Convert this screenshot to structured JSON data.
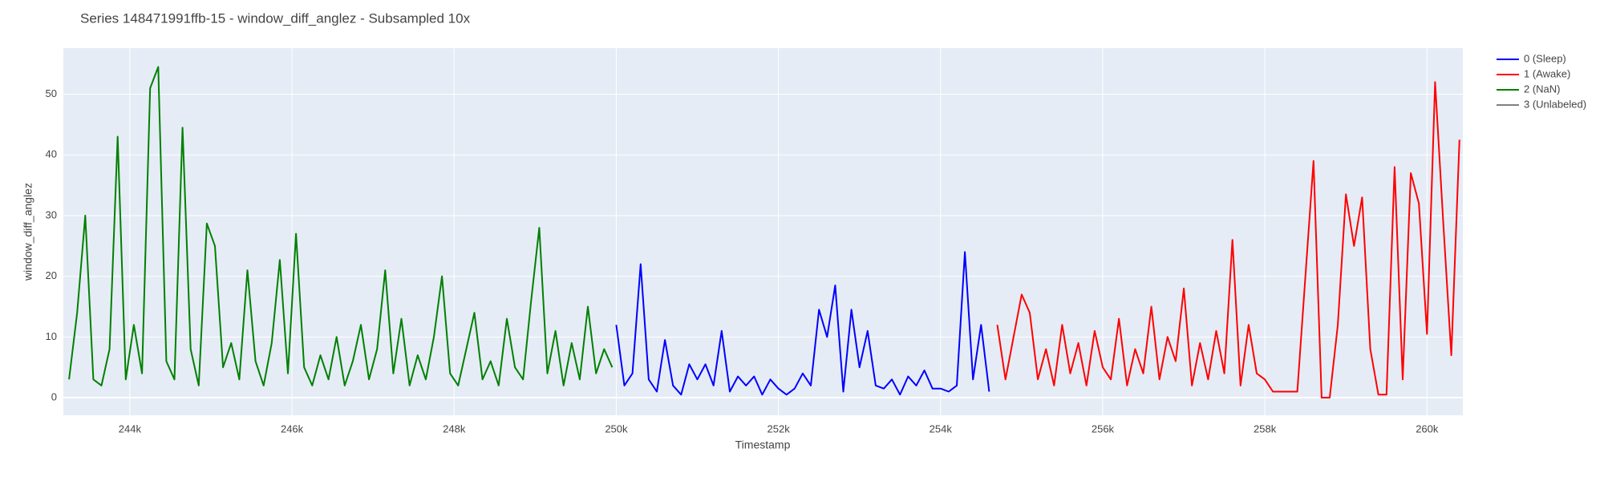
{
  "chart_data": {
    "type": "line",
    "title": "Series 148471991ffb-15 - window_diff_anglez - Subsampled 10x",
    "x_label": "Timestamp",
    "y_label": "window_diff_anglez",
    "xlim": [
      243180,
      260442
    ],
    "ylim": [
      -2.9,
      57.6
    ],
    "xticks": [
      {
        "value": 244000,
        "label": "244k"
      },
      {
        "value": 246000,
        "label": "246k"
      },
      {
        "value": 248000,
        "label": "248k"
      },
      {
        "value": 250000,
        "label": "250k"
      },
      {
        "value": 252000,
        "label": "252k"
      },
      {
        "value": 254000,
        "label": "254k"
      },
      {
        "value": 256000,
        "label": "256k"
      },
      {
        "value": 258000,
        "label": "258k"
      },
      {
        "value": 260000,
        "label": "260k"
      }
    ],
    "yticks": [
      0,
      10,
      20,
      30,
      40,
      50
    ],
    "grid": true,
    "legend": "top-right",
    "series": [
      {
        "name": "0 (Sleep)",
        "color": "#0000ff",
        "x": [
          250000,
          250100,
          250200,
          250300,
          250400,
          250500,
          250600,
          250700,
          250800,
          250900,
          251000,
          251100,
          251200,
          251300,
          251400,
          251500,
          251600,
          251700,
          251800,
          251900,
          252000,
          252100,
          252200,
          252300,
          252400,
          252500,
          252600,
          252700,
          252800,
          252900,
          253000,
          253100,
          253200,
          253300,
          253400,
          253500,
          253600,
          253700,
          253800,
          253900,
          254000,
          254100,
          254200,
          254300,
          254400,
          254500,
          254600
        ],
        "values": [
          12,
          2,
          4,
          22,
          3,
          1,
          9.5,
          2,
          0.5,
          5.5,
          3,
          5.5,
          2,
          11,
          1,
          3.5,
          2,
          3.5,
          0.5,
          3,
          1.5,
          0.5,
          1.5,
          4,
          2,
          14.5,
          10,
          18.5,
          1,
          14.5,
          5,
          11,
          2,
          1.5,
          3,
          0.5,
          3.5,
          2,
          4.5,
          1.5,
          1.5,
          1,
          2,
          24,
          3,
          12,
          1
        ]
      },
      {
        "name": "1 (Awake)",
        "color": "#ff0000",
        "x": [
          254700,
          254800,
          254900,
          255000,
          255100,
          255200,
          255300,
          255400,
          255500,
          255600,
          255700,
          255800,
          255900,
          256000,
          256100,
          256200,
          256300,
          256400,
          256500,
          256600,
          256700,
          256800,
          256900,
          257000,
          257100,
          257200,
          257300,
          257400,
          257500,
          257600,
          257700,
          257800,
          257900,
          258000,
          258100,
          258200,
          258300,
          258400,
          258500,
          258600,
          258700,
          258800,
          258900,
          259000,
          259100,
          259200,
          259300,
          259400,
          259500,
          259600,
          259700,
          259800,
          259900,
          260000,
          260100,
          260200,
          260300,
          260400
        ],
        "values": [
          12,
          3,
          10,
          17,
          14,
          3,
          8,
          2,
          12,
          4,
          9,
          2,
          11,
          5,
          3,
          13,
          2,
          8,
          4,
          15,
          3,
          10,
          6,
          18,
          2,
          9,
          3,
          11,
          4,
          26,
          2,
          12,
          4,
          3,
          1,
          1,
          1,
          1,
          20,
          39,
          0,
          0,
          12,
          33.5,
          25,
          33,
          8,
          0.5,
          0.5,
          38,
          3,
          37,
          32,
          10.5,
          52,
          29,
          7,
          42.5
        ]
      },
      {
        "name": "2 (NaN)",
        "color": "#008000",
        "x": [
          243250,
          243350,
          243450,
          243550,
          243650,
          243750,
          243850,
          243950,
          244050,
          244150,
          244250,
          244350,
          244450,
          244550,
          244650,
          244750,
          244850,
          244950,
          245050,
          245150,
          245250,
          245350,
          245450,
          245550,
          245650,
          245750,
          245850,
          245950,
          246050,
          246150,
          246250,
          246350,
          246450,
          246550,
          246650,
          246750,
          246850,
          246950,
          247050,
          247150,
          247250,
          247350,
          247450,
          247550,
          247650,
          247750,
          247850,
          247950,
          248050,
          248150,
          248250,
          248350,
          248450,
          248550,
          248650,
          248750,
          248850,
          248950,
          249050,
          249150,
          249250,
          249350,
          249450,
          249550,
          249650,
          249750,
          249850,
          249950
        ],
        "values": [
          3,
          14,
          30,
          3,
          2,
          8,
          43,
          3,
          12,
          4,
          51,
          54.5,
          6,
          3,
          44.5,
          8,
          2,
          28.7,
          25,
          5,
          9,
          3,
          21,
          6,
          2,
          9,
          22.7,
          4,
          27,
          5,
          2,
          7,
          3,
          10,
          2,
          6,
          12,
          3,
          8,
          21,
          4,
          13,
          2,
          7,
          3,
          10,
          20,
          4,
          2,
          8,
          14,
          3,
          6,
          2,
          13,
          5,
          3,
          16,
          28,
          4,
          11,
          2,
          9,
          3,
          15,
          4,
          8,
          5
        ]
      },
      {
        "name": "3 (Unlabeled)",
        "color": "#808080",
        "x": [],
        "values": []
      }
    ]
  }
}
